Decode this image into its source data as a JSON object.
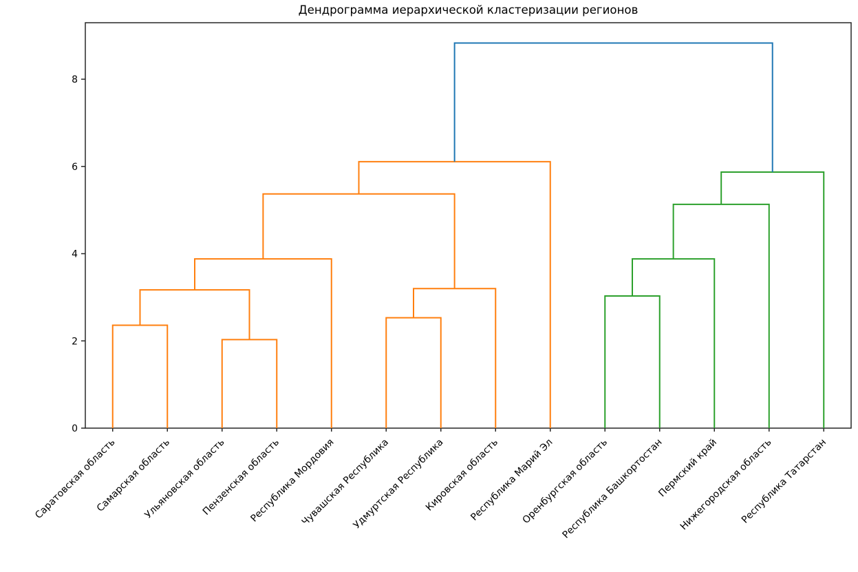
{
  "chart_data": {
    "type": "dendrogram",
    "title": "Дендрограмма иерархической кластеризации регионов",
    "orientation": "top",
    "xlabel": "",
    "ylabel": "",
    "grid": false,
    "legend": null,
    "xlim": [
      0,
      140
    ],
    "ylim": [
      0,
      9.295
    ],
    "yticks": [
      0,
      2,
      4,
      6,
      8
    ],
    "leaf_spacing_data_units": 10,
    "first_leaf_data_x": 5,
    "leaves": [
      "Саратовская область",
      "Самарская область",
      "Ульяновская область",
      "Пензенская область",
      "Республика Мордовия",
      "Чувашская Республика",
      "Удмуртская Республика",
      "Кировская область",
      "Республика Марий Эл",
      "Оренбургская область",
      "Республика Башкортостан",
      "Пермский край",
      "Нижегородская область",
      "Республика Татарстан"
    ],
    "merges": [
      {
        "a": "L0",
        "b": "L1",
        "height": 2.36,
        "color": "#ff7f0e"
      },
      {
        "a": "L2",
        "b": "L3",
        "height": 2.03,
        "color": "#ff7f0e"
      },
      {
        "a": "M0",
        "b": "M1",
        "height": 3.17,
        "color": "#ff7f0e"
      },
      {
        "a": "M2",
        "b": "L4",
        "height": 3.88,
        "color": "#ff7f0e"
      },
      {
        "a": "L5",
        "b": "L6",
        "height": 2.53,
        "color": "#ff7f0e"
      },
      {
        "a": "M4",
        "b": "L7",
        "height": 3.2,
        "color": "#ff7f0e"
      },
      {
        "a": "M3",
        "b": "M5",
        "height": 5.37,
        "color": "#ff7f0e"
      },
      {
        "a": "M6",
        "b": "L8",
        "height": 6.11,
        "color": "#ff7f0e"
      },
      {
        "a": "L9",
        "b": "L10",
        "height": 3.03,
        "color": "#2ca02c"
      },
      {
        "a": "M8",
        "b": "L11",
        "height": 3.88,
        "color": "#2ca02c"
      },
      {
        "a": "M9",
        "b": "L12",
        "height": 5.13,
        "color": "#2ca02c"
      },
      {
        "a": "M10",
        "b": "L13",
        "height": 5.87,
        "color": "#2ca02c"
      },
      {
        "a": "M7",
        "b": "M11",
        "height": 8.83,
        "color": "#1f77b4"
      }
    ],
    "colors": {
      "cluster_left": "#ff7f0e",
      "cluster_right": "#2ca02c",
      "root_link": "#1f77b4",
      "axis": "#262626",
      "text": "#000000"
    }
  }
}
